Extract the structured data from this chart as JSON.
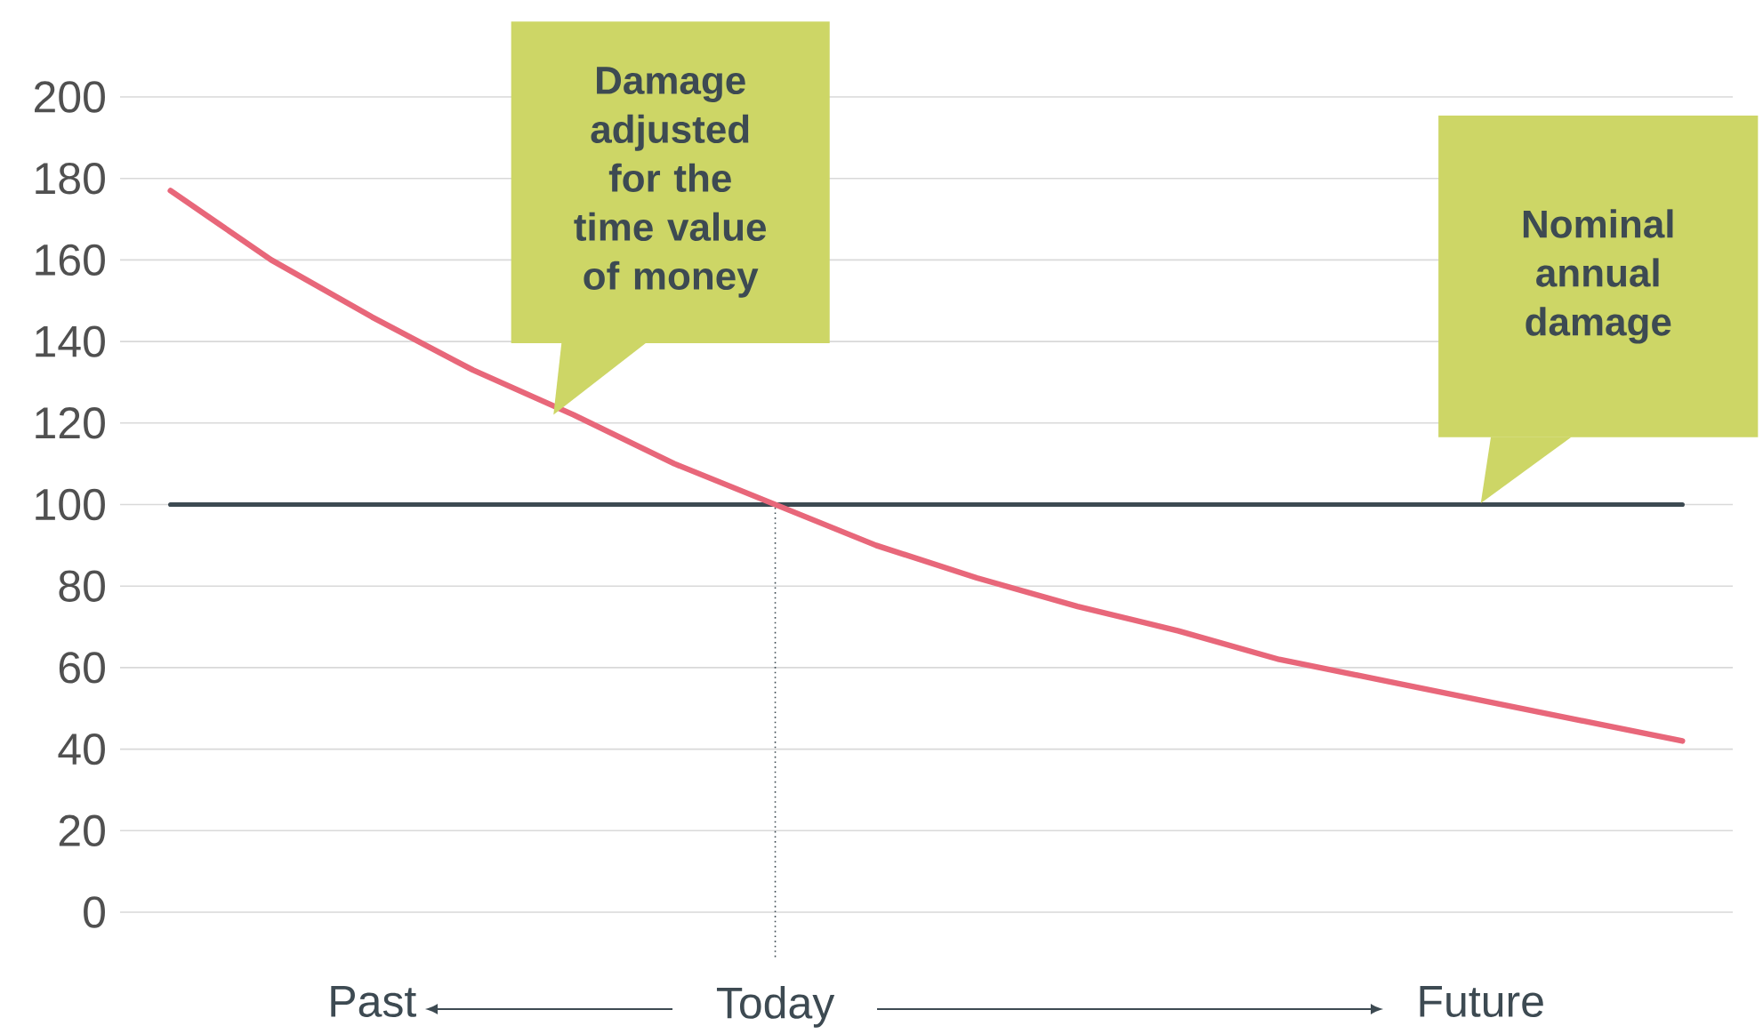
{
  "chart_data": {
    "type": "line",
    "categories": [
      null,
      null,
      "Past",
      null,
      null,
      null,
      "Today",
      null,
      null,
      null,
      null,
      null,
      null,
      "Future",
      null,
      null
    ],
    "series": [
      {
        "color": "#e8677a",
        "values": [
          177,
          160,
          146,
          133,
          122,
          110,
          100,
          90,
          82,
          75,
          69,
          62,
          57,
          52,
          47,
          42
        ]
      },
      {
        "color": "#3d4a52",
        "values": [
          100,
          100,
          100,
          100,
          100,
          100,
          100,
          100,
          100,
          100,
          100,
          100,
          100,
          100,
          100,
          100
        ]
      }
    ],
    "ylim": [
      0,
      200
    ],
    "yticks": [
      0,
      20,
      40,
      60,
      80,
      100,
      120,
      140,
      160,
      180,
      200
    ],
    "grid": "y",
    "annotations": [
      "Damage adjusted for the time value of money",
      "Nominal annual damage"
    ],
    "ref_lines": [
      {
        "axis": "x",
        "value": "Today",
        "line_style": "dotted",
        "color": "#3d4a52"
      }
    ]
  }
}
